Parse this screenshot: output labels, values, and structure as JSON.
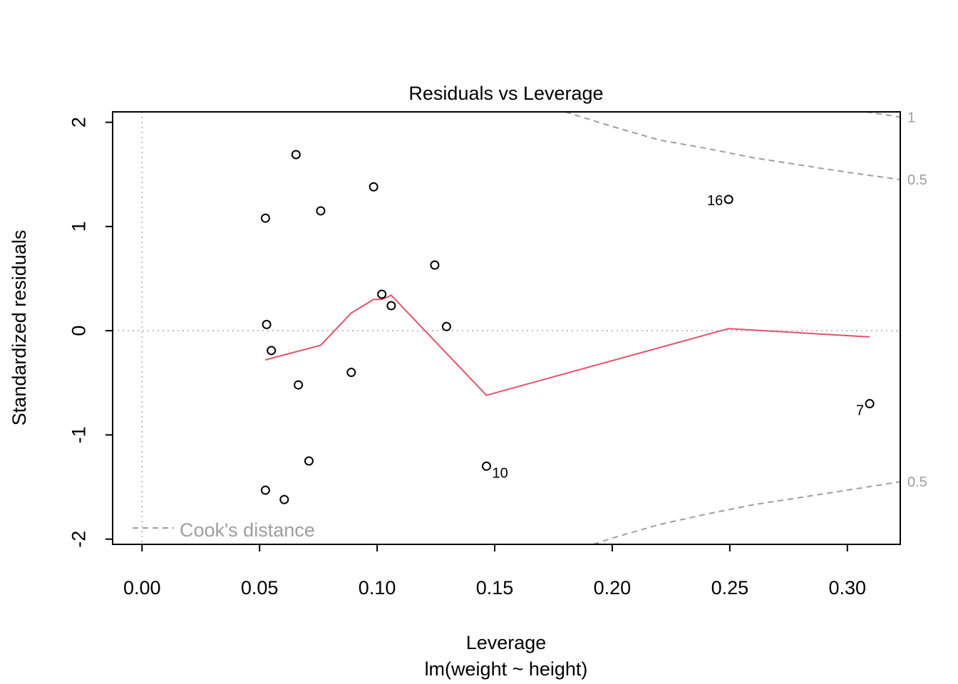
{
  "chart_data": {
    "type": "scatter",
    "title": "Residuals vs Leverage",
    "xlabel": "Leverage",
    "subtitle": "lm(weight ~ height)",
    "ylabel": "Standardized residuals",
    "xlim": [
      -0.0125,
      0.3225
    ],
    "ylim": [
      -2.05,
      2.1
    ],
    "xticks": [
      "0.00",
      "0.05",
      "0.10",
      "0.15",
      "0.20",
      "0.25",
      "0.30"
    ],
    "xtick_values": [
      0.0,
      0.05,
      0.1,
      0.15,
      0.2,
      0.25,
      0.3
    ],
    "yticks": [
      "-2",
      "-1",
      "0",
      "1",
      "2"
    ],
    "ytick_values": [
      -2,
      -1,
      0,
      1,
      2
    ],
    "grid": false,
    "reference_lines": {
      "x": 0,
      "y": 0
    },
    "points": [
      {
        "x": 0.0655,
        "y": 1.69
      },
      {
        "x": 0.0985,
        "y": 1.38
      },
      {
        "x": 0.076,
        "y": 1.15
      },
      {
        "x": 0.0525,
        "y": 1.08
      },
      {
        "x": 0.1245,
        "y": 0.63
      },
      {
        "x": 0.102,
        "y": 0.35
      },
      {
        "x": 0.106,
        "y": 0.24
      },
      {
        "x": 0.053,
        "y": 0.06
      },
      {
        "x": 0.1295,
        "y": 0.04
      },
      {
        "x": 0.055,
        "y": -0.19
      },
      {
        "x": 0.089,
        "y": -0.4
      },
      {
        "x": 0.0665,
        "y": -0.52
      },
      {
        "x": 0.071,
        "y": -1.25
      },
      {
        "x": 0.0525,
        "y": -1.53
      },
      {
        "x": 0.0605,
        "y": -1.62
      },
      {
        "x": 0.1465,
        "y": -1.3,
        "label": "10"
      },
      {
        "x": 0.2495,
        "y": 1.26,
        "label": "16"
      },
      {
        "x": 0.3095,
        "y": -0.7,
        "label": "7"
      }
    ],
    "smoother": {
      "color": "#DF536B",
      "x": [
        0.0525,
        0.076,
        0.089,
        0.0985,
        0.102,
        0.106,
        0.1465,
        0.2495,
        0.3095
      ],
      "y": [
        -0.28,
        -0.14,
        0.17,
        0.3,
        0.3,
        0.34,
        -0.62,
        0.02,
        -0.06
      ]
    },
    "cooks_distance": {
      "color": "#9e9e9e",
      "legend": "Cook's distance",
      "contour_labels": [
        "1",
        "0.5",
        "0.5"
      ],
      "upper_0_5": {
        "x": [
          0.18,
          0.2,
          0.22,
          0.24,
          0.26,
          0.28,
          0.3,
          0.3225
        ],
        "y": [
          2.1,
          1.96,
          1.83,
          1.75,
          1.66,
          1.59,
          1.52,
          1.45
        ]
      },
      "lower_0_5": {
        "x": [
          0.192,
          0.2,
          0.22,
          0.24,
          0.26,
          0.28,
          0.3,
          0.3225
        ],
        "y": [
          -2.05,
          -1.99,
          -1.86,
          -1.76,
          -1.67,
          -1.6,
          -1.53,
          -1.45
        ]
      },
      "upper_1": {
        "x": [
          0.308,
          0.3225
        ],
        "y": [
          2.1,
          2.05
        ]
      }
    }
  }
}
